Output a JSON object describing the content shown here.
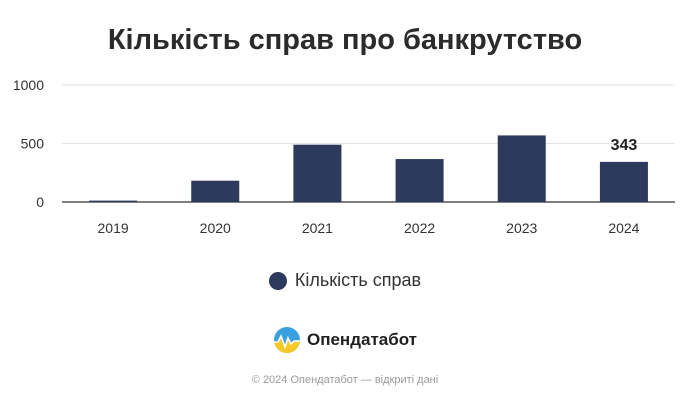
{
  "chart_data": {
    "type": "bar",
    "title": "Кількість справ про банкрутство",
    "categories": [
      "2019",
      "2020",
      "2021",
      "2022",
      "2023",
      "2024"
    ],
    "series": [
      {
        "name": "Кількість справ",
        "values": [
          12,
          182,
          490,
          367,
          569,
          343
        ]
      }
    ],
    "data_labels": {
      "2024": "343"
    },
    "ylim": [
      0,
      1000
    ],
    "yticks": [
      0,
      500,
      1000
    ],
    "grid": true,
    "legend": "bottom",
    "bar_color": "#2e3a5c"
  },
  "legend": {
    "label": "Кількість справ"
  },
  "brand": {
    "name": "Опендатабот",
    "logo_icon": "opendatabot-logo-icon"
  },
  "footer": {
    "copyright": "© 2024 Опендатабот — відкриті дані"
  }
}
